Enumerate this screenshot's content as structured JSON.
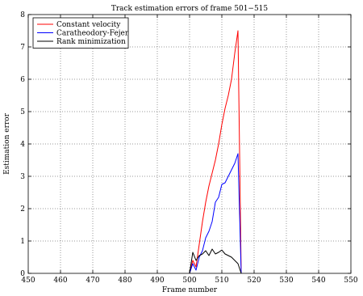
{
  "chart_data": {
    "type": "line",
    "title": "Track estimation errors of frame 501−515",
    "xlabel": "Frame number",
    "ylabel": "Estimation error",
    "xlim": [
      450,
      550
    ],
    "ylim": [
      0,
      8
    ],
    "xticks": [
      450,
      460,
      470,
      480,
      490,
      500,
      510,
      520,
      530,
      540,
      550
    ],
    "yticks": [
      0,
      1,
      2,
      3,
      4,
      5,
      6,
      7,
      8
    ],
    "grid": true,
    "legend_position": "top-left",
    "series": [
      {
        "name": "Constant velocity",
        "color": "#ff0000",
        "x": [
          500,
          501,
          502,
          503,
          504,
          505,
          506,
          507,
          508,
          509,
          510,
          511,
          512,
          513,
          514,
          515,
          516
        ],
        "y": [
          0,
          0.4,
          0.2,
          0.9,
          1.6,
          2.2,
          2.7,
          3.1,
          3.5,
          4.0,
          4.6,
          5.1,
          5.5,
          6.0,
          6.8,
          7.5,
          0
        ]
      },
      {
        "name": "Caratheodory-Fejer",
        "color": "#0000ff",
        "x": [
          500,
          501,
          502,
          503,
          504,
          505,
          506,
          507,
          508,
          509,
          510,
          511,
          512,
          513,
          514,
          515,
          516
        ],
        "y": [
          0,
          0.3,
          0.1,
          0.5,
          0.7,
          1.1,
          1.3,
          1.6,
          2.2,
          2.35,
          2.75,
          2.8,
          3.0,
          3.2,
          3.4,
          3.7,
          0
        ]
      },
      {
        "name": "Rank minimization",
        "color": "#000000",
        "x": [
          500,
          501,
          502,
          503,
          504,
          505,
          506,
          507,
          508,
          509,
          510,
          511,
          512,
          513,
          514,
          515,
          516
        ],
        "y": [
          0,
          0.65,
          0.4,
          0.55,
          0.6,
          0.7,
          0.55,
          0.75,
          0.6,
          0.65,
          0.72,
          0.6,
          0.55,
          0.5,
          0.4,
          0.3,
          0
        ]
      }
    ]
  }
}
